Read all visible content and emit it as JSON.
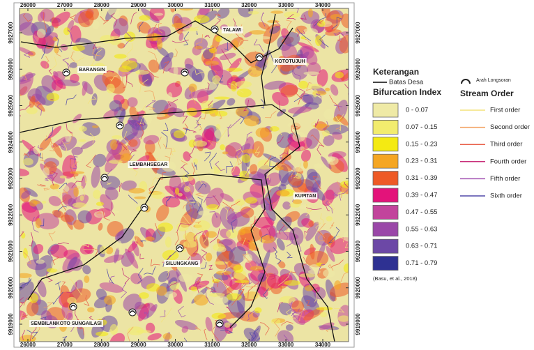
{
  "map": {
    "x_ticks": [
      26000,
      27000,
      28000,
      29000,
      30000,
      31000,
      32000,
      33000,
      34000
    ],
    "y_ticks": [
      9927000,
      9926000,
      9925000,
      9924000,
      9923000,
      9922000,
      9921000,
      9920000,
      9919000
    ],
    "places": [
      "TALAWI",
      "KOTOTUJUH",
      "BARANGIN",
      "LEMBAHSEGAR",
      "KUPITAN",
      "SILUNGKANG",
      "SEMBILANKOTO SUNGAILASI"
    ]
  },
  "legend": {
    "title": "Keterangan",
    "boundary": "Batas Desa",
    "bifurcation_title": "Bifurcation Index",
    "bifurcation_classes": [
      {
        "label": "0 - 0.07",
        "color": "#efeaa6"
      },
      {
        "label": "0.07 - 0.15",
        "color": "#f2ec6e"
      },
      {
        "label": "0.15 - 0.23",
        "color": "#f4ea12"
      },
      {
        "label": "0.23 - 0.31",
        "color": "#f5a623"
      },
      {
        "label": "0.31 - 0.39",
        "color": "#ee5a26"
      },
      {
        "label": "0.39 - 0.47",
        "color": "#e3137a"
      },
      {
        "label": "0.47 - 0.55",
        "color": "#c2449c"
      },
      {
        "label": "0.55 - 0.63",
        "color": "#9a47a8"
      },
      {
        "label": "0.63 - 0.71",
        "color": "#6c48a6"
      },
      {
        "label": "0.71 - 0.79",
        "color": "#2e3192"
      }
    ],
    "landslide": "Arah Longsoran",
    "stream_title": "Stream Order",
    "stream_orders": [
      {
        "label": "First order",
        "color": "#f4e27a"
      },
      {
        "label": "Second order",
        "color": "#f2a060"
      },
      {
        "label": "Third order",
        "color": "#e8604a"
      },
      {
        "label": "Fourth order",
        "color": "#c8307a"
      },
      {
        "label": "Fifth order",
        "color": "#a050b0"
      },
      {
        "label": "Sixth order",
        "color": "#5048a8"
      }
    ],
    "citation": "(Basu, et al., 2018)"
  }
}
